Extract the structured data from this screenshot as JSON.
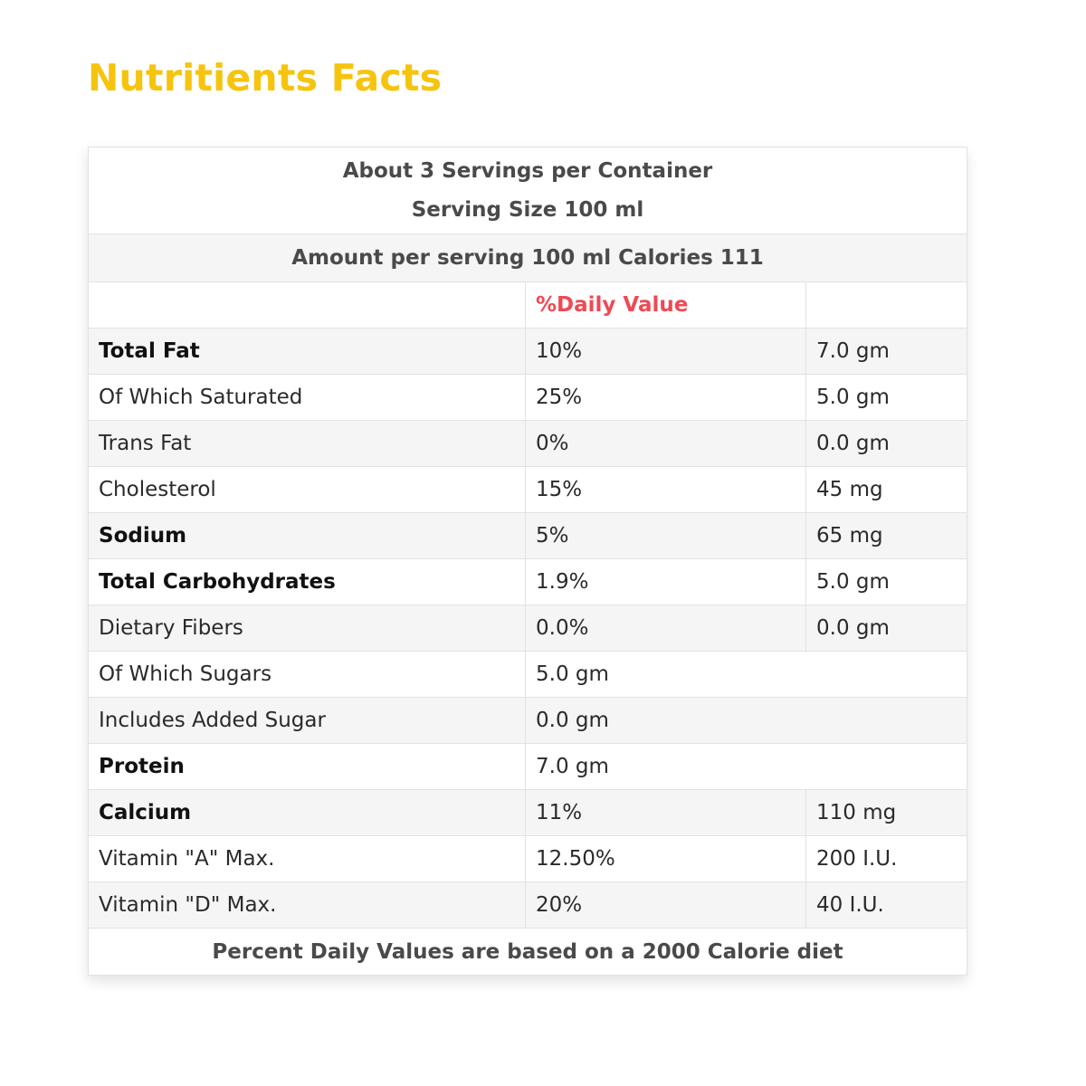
{
  "title": "Nutritients Facts",
  "header": {
    "servings_line": "About 3 Servings per Container",
    "serving_size_line": "Serving Size 100 ml",
    "amount_line": "Amount per serving 100 ml Calories 111",
    "daily_value_label": "%Daily Value"
  },
  "rows": [
    {
      "name": "Total Fat",
      "dv": "10%",
      "amount": "7.0 gm"
    },
    {
      "name": "Of Which Saturated",
      "dv": "25%",
      "amount": "5.0 gm"
    },
    {
      "name": "Trans Fat",
      "dv": "0%",
      "amount": "0.0 gm"
    },
    {
      "name": "Cholesterol",
      "dv": "15%",
      "amount": "45 mg"
    },
    {
      "name": "Sodium",
      "dv": "5%",
      "amount": "65 mg"
    },
    {
      "name": "Total Carbohydrates",
      "dv": "1.9%",
      "amount": "5.0 gm"
    },
    {
      "name": "Dietary Fibers",
      "dv": "0.0%",
      "amount": "0.0 gm"
    },
    {
      "name": "Of Which Sugars",
      "value": "5.0 gm"
    },
    {
      "name": "Includes Added Sugar",
      "value": "0.0 gm"
    },
    {
      "name": "Protein",
      "value": "7.0 gm"
    },
    {
      "name": "Calcium",
      "dv": "11%",
      "amount": "110 mg"
    },
    {
      "name": "Vitamin \"A\" Max.",
      "dv": "12.50%",
      "amount": "200 I.U."
    },
    {
      "name": "Vitamin \"D\" Max.",
      "dv": "20%",
      "amount": "40 I.U."
    }
  ],
  "footer": "Percent Daily Values are based on a 2000 Calorie diet",
  "colors": {
    "title": "#f6c40e",
    "daily_value_header": "#ee4a55",
    "border": "#e2e2e2",
    "shaded_row": "#f5f5f5"
  }
}
